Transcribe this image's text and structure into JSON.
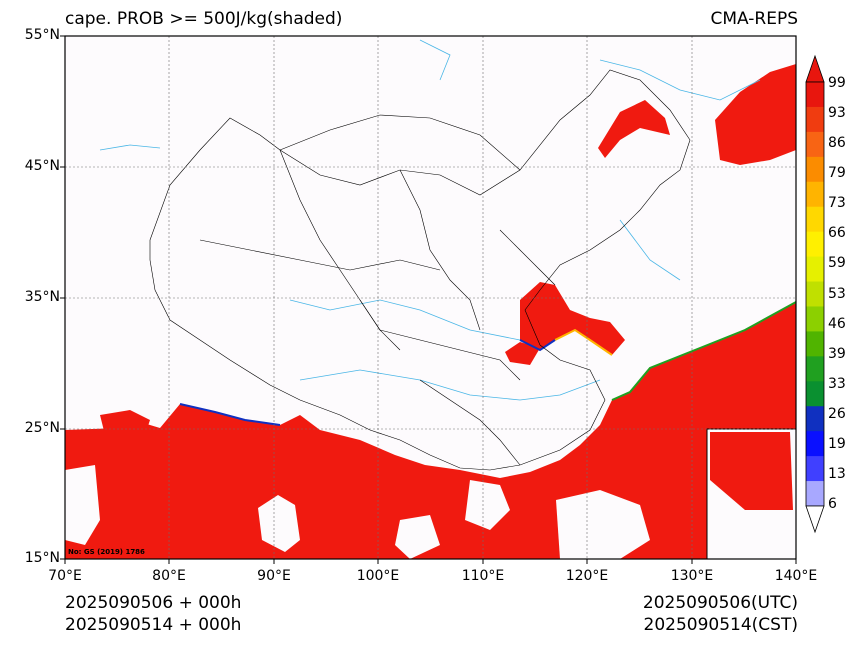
{
  "title_left": "cape. PROB >= 500J/kg(shaded)",
  "title_right": "CMA-REPS",
  "lat_labels": [
    "55°N",
    "45°N",
    "35°N",
    "25°N",
    "15°N"
  ],
  "lon_labels": [
    "70°E",
    "80°E",
    "90°E",
    "100°E",
    "110°E",
    "120°E",
    "130°E",
    "140°E"
  ],
  "map_note": "No: GS (2019) 1786",
  "colorbar": {
    "labels": [
      "99",
      "93",
      "86",
      "79",
      "73",
      "66",
      "59",
      "53",
      "46",
      "39",
      "33",
      "26",
      "19",
      "13",
      "6"
    ],
    "colors": [
      "#e8160e",
      "#f03c10",
      "#f86414",
      "#fb8c00",
      "#ffb400",
      "#ffd800",
      "#fff000",
      "#e6f000",
      "#c0e000",
      "#8cd000",
      "#50b400",
      "#20a020",
      "#0a9030",
      "#1030c0",
      "#0a10ff",
      "#4040ff",
      "#a8a8ff"
    ],
    "top_arrow_color": "#e8160e",
    "bottom_arrow_color": "#ffffff"
  },
  "footer": {
    "left_line1": "2025090506  +  000h",
    "left_line2": "2025090514  +  000h",
    "right_line1": "2025090506(UTC)",
    "right_line2": "2025090514(CST)"
  },
  "shade_color": "#f01a10",
  "water_color": "#49b6e6",
  "border_color": "#000000"
}
